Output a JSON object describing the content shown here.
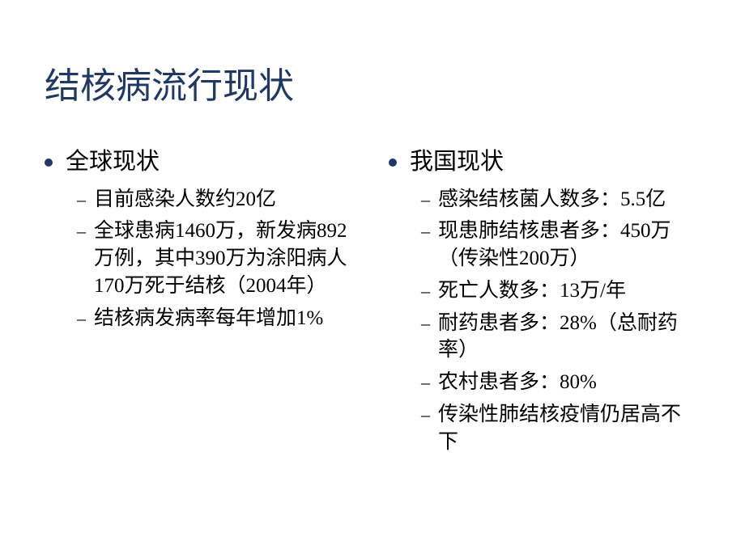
{
  "title": "结核病流行现状",
  "colors": {
    "title_color": "#1f3864",
    "bullet_color": "#1f3864",
    "text_color": "#000000",
    "background": "#ffffff"
  },
  "typography": {
    "title_fontsize": 44,
    "main_fontsize": 29,
    "sub_fontsize": 25
  },
  "left_column": {
    "heading": "全球现状",
    "items": [
      "目前感染人数约20亿",
      "全球患病1460万，新发病892 万例，其中390万为涂阳病人170万死于结核（2004年）",
      "结核病发病率每年增加1%"
    ]
  },
  "right_column": {
    "heading": "我国现状",
    "items": [
      "感染结核菌人数多：5.5亿",
      "现患肺结核患者多：450万（传染性200万）",
      "死亡人数多：13万/年",
      "耐药患者多：28%（总耐药率）",
      "农村患者多：80%",
      "传染性肺结核疫情仍居高不下"
    ]
  }
}
